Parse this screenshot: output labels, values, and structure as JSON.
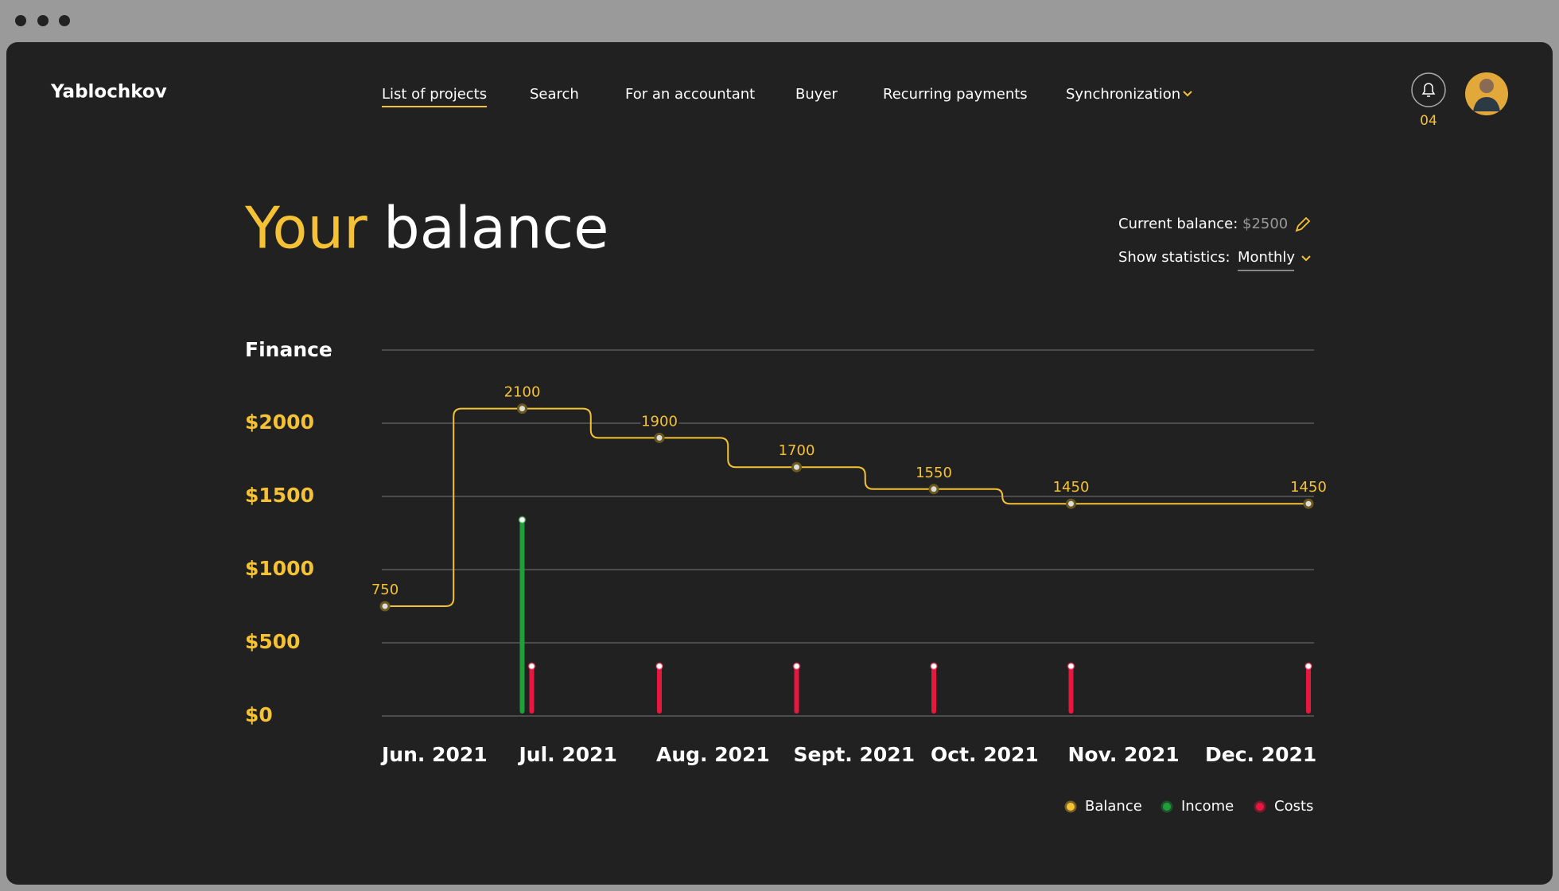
{
  "nav": {
    "brand": "Yablochkov",
    "items": [
      "List of projects",
      "Search",
      "For an accountant",
      "Buyer",
      "Recurring payments",
      "Synchronization"
    ],
    "active": 0,
    "notifications": "04"
  },
  "header": {
    "title_accent": "Your",
    "title_rest": "balance",
    "current_balance_label": "Current balance:",
    "current_balance": "$2500",
    "statistics_label": "Show statistics:",
    "statistics_period": "Monthly"
  },
  "chart_data": {
    "type": "line",
    "title": "Finance",
    "categories": [
      "Jun. 2021",
      "Jul. 2021",
      "Aug. 2021",
      "Sept. 2021",
      "Oct. 2021",
      "Nov. 2021",
      "Dec. 2021"
    ],
    "series": [
      {
        "name": "Balance",
        "type": "line",
        "color": "#f5c235",
        "values": [
          750,
          2100,
          1900,
          1700,
          1550,
          1450,
          1450
        ]
      },
      {
        "name": "Income",
        "type": "bar",
        "color": "#1f9e3b",
        "values": [
          null,
          1340,
          null,
          null,
          null,
          null,
          null
        ]
      },
      {
        "name": "Costs",
        "type": "bar",
        "color": "#e8173f",
        "values": [
          null,
          340,
          340,
          340,
          340,
          340,
          340
        ]
      }
    ],
    "ylim": [
      0,
      2500
    ],
    "yticks": [
      {
        "value": 0,
        "label": "$0"
      },
      {
        "value": 500,
        "label": "$500"
      },
      {
        "value": 1000,
        "label": "$1000"
      },
      {
        "value": 1500,
        "label": "$1500"
      },
      {
        "value": 2000,
        "label": "$2000"
      }
    ],
    "grid": true
  }
}
